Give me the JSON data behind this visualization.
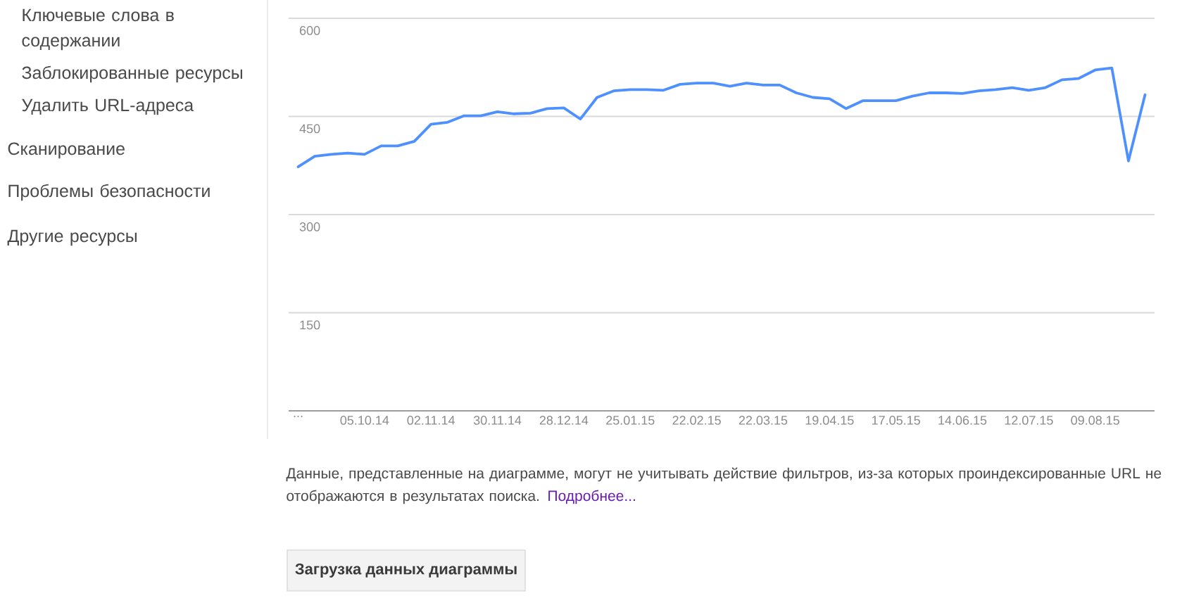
{
  "chart_data": {
    "type": "line",
    "annotations": [
      "Ключевые слова в содержании",
      "Заблокированные ресурсы",
      "Удалить URL-адреса",
      "Сканирование",
      "Проблемы безопасности",
      "Другие ресурсы",
      "Данные, представленные на диаграмме, могут не учитывать действие фильтров, из-за которых проиндексированные URL не отображаются в результатах поиска.",
      "Подробнее...",
      "Загрузка данных диаграммы"
    ],
    "x": [
      "2014-09-07",
      "2014-09-14",
      "2014-09-21",
      "2014-09-28",
      "2014-10-05",
      "2014-10-12",
      "2014-10-19",
      "2014-10-26",
      "2014-11-02",
      "2014-11-09",
      "2014-11-16",
      "2014-11-23",
      "2014-11-30",
      "2014-12-07",
      "2014-12-14",
      "2014-12-21",
      "2014-12-28",
      "2015-01-04",
      "2015-01-11",
      "2015-01-18",
      "2015-01-25",
      "2015-02-01",
      "2015-02-08",
      "2015-02-15",
      "2015-02-22",
      "2015-03-01",
      "2015-03-08",
      "2015-03-15",
      "2015-03-22",
      "2015-03-29",
      "2015-04-05",
      "2015-04-12",
      "2015-04-19",
      "2015-04-26",
      "2015-05-03",
      "2015-05-10",
      "2015-05-17",
      "2015-05-24",
      "2015-05-31",
      "2015-06-07",
      "2015-06-14",
      "2015-06-21",
      "2015-06-28",
      "2015-07-05",
      "2015-07-12",
      "2015-07-19",
      "2015-07-26",
      "2015-08-02",
      "2015-08-09",
      "2015-08-16",
      "2015-08-23",
      "2015-08-30"
    ],
    "values": [
      373,
      389,
      392,
      394,
      392,
      405,
      405,
      412,
      438,
      441,
      451,
      451,
      457,
      454,
      455,
      462,
      463,
      446,
      479,
      489,
      491,
      491,
      490,
      499,
      501,
      501,
      496,
      501,
      498,
      498,
      486,
      479,
      477,
      462,
      474,
      474,
      474,
      481,
      486,
      486,
      485,
      489,
      491,
      494,
      490,
      494,
      506,
      508,
      521,
      524,
      382,
      483
    ],
    "color": "#4d90fe",
    "line_style": "solid",
    "xlim": [
      "2014-09-03",
      "2015-09-03"
    ],
    "xticks": [
      {
        "value": "2014-09-07",
        "label": "..."
      },
      {
        "value": "2014-10-05",
        "label": "05.10.14"
      },
      {
        "value": "2014-11-02",
        "label": "02.11.14"
      },
      {
        "value": "2014-11-30",
        "label": "30.11.14"
      },
      {
        "value": "2014-12-28",
        "label": "28.12.14"
      },
      {
        "value": "2015-01-25",
        "label": "25.01.15"
      },
      {
        "value": "2015-02-22",
        "label": "22.02.15"
      },
      {
        "value": "2015-03-22",
        "label": "22.03.15"
      },
      {
        "value": "2015-04-19",
        "label": "19.04.15"
      },
      {
        "value": "2015-05-17",
        "label": "17.05.15"
      },
      {
        "value": "2015-06-14",
        "label": "14.06.15"
      },
      {
        "value": "2015-07-12",
        "label": "12.07.15"
      },
      {
        "value": "2015-08-09",
        "label": "09.08.15"
      }
    ],
    "ylim": [
      0,
      600
    ],
    "yticks": [
      150,
      300,
      450,
      600
    ],
    "grid": "y"
  }
}
